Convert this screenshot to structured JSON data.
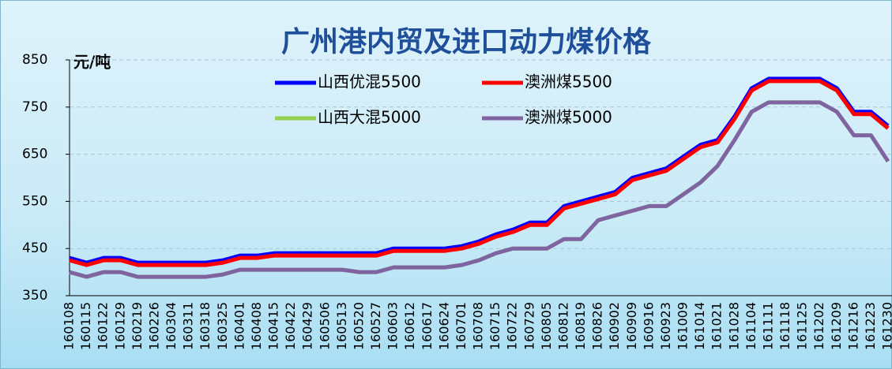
{
  "chart_data": {
    "type": "line",
    "title": "广州港内贸及进口动力煤价格",
    "y_label": "元/吨",
    "categories": [
      "160108",
      "160115",
      "160122",
      "160129",
      "160219",
      "160226",
      "160304",
      "160311",
      "160318",
      "160325",
      "160401",
      "160408",
      "160415",
      "160422",
      "160429",
      "160506",
      "160513",
      "160520",
      "160527",
      "160603",
      "160612",
      "160617",
      "160624",
      "160701",
      "160708",
      "160715",
      "160722",
      "160729",
      "160805",
      "160812",
      "160819",
      "160826",
      "160902",
      "160909",
      "160916",
      "160923",
      "161009",
      "161014",
      "161021",
      "161028",
      "161104",
      "161111",
      "161118",
      "161125",
      "161202",
      "161209",
      "161216",
      "161223",
      "161230"
    ],
    "series": [
      {
        "name": "山西优混5500",
        "color": "#0000ff",
        "values": [
          430,
          420,
          430,
          430,
          420,
          420,
          420,
          420,
          420,
          425,
          435,
          435,
          440,
          440,
          440,
          440,
          440,
          440,
          440,
          450,
          450,
          450,
          450,
          455,
          465,
          480,
          490,
          505,
          505,
          540,
          550,
          560,
          570,
          600,
          610,
          620,
          645,
          670,
          680,
          730,
          790,
          810,
          810,
          810,
          810,
          790,
          740,
          740,
          710
        ]
      },
      {
        "name": "澳洲煤5500",
        "color": "#ff0000",
        "values": [
          425,
          415,
          425,
          425,
          415,
          415,
          415,
          415,
          415,
          420,
          430,
          430,
          435,
          435,
          435,
          435,
          435,
          435,
          435,
          445,
          445,
          445,
          445,
          450,
          460,
          475,
          485,
          500,
          500,
          535,
          545,
          555,
          565,
          595,
          605,
          615,
          640,
          665,
          675,
          725,
          785,
          805,
          805,
          805,
          805,
          785,
          735,
          735,
          705
        ]
      },
      {
        "name": "山西大混5000",
        "color": "#92d050",
        "values": [
          400,
          390,
          400,
          400,
          390,
          390,
          390,
          390,
          390,
          395,
          405,
          405,
          405,
          405,
          405,
          405,
          405,
          400,
          400,
          410,
          410,
          410,
          410,
          415,
          425,
          440,
          450,
          450,
          450,
          470,
          470,
          510,
          520,
          530,
          540,
          540,
          565,
          590,
          625,
          680,
          740,
          760,
          760,
          760,
          760,
          740,
          690,
          690,
          635
        ]
      },
      {
        "name": "澳洲煤5000",
        "color": "#8064a2",
        "values": [
          400,
          390,
          400,
          400,
          390,
          390,
          390,
          390,
          390,
          395,
          405,
          405,
          405,
          405,
          405,
          405,
          405,
          400,
          400,
          410,
          410,
          410,
          410,
          415,
          425,
          440,
          450,
          450,
          450,
          470,
          470,
          510,
          520,
          530,
          540,
          540,
          565,
          590,
          625,
          680,
          740,
          760,
          760,
          760,
          760,
          740,
          690,
          690,
          635
        ]
      }
    ],
    "ylim": [
      350,
      850
    ],
    "yticks": [
      350,
      450,
      550,
      650,
      750,
      850
    ],
    "grid": true
  }
}
